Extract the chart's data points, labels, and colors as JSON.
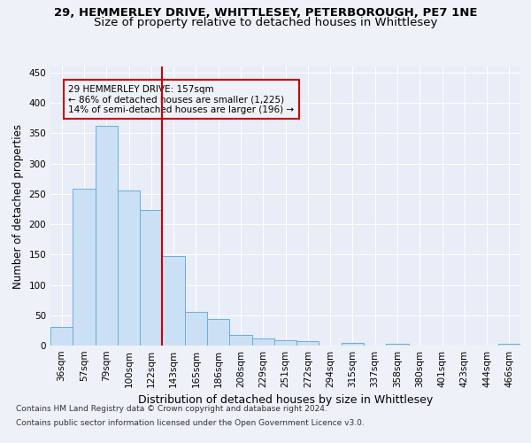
{
  "title_line1": "29, HEMMERLEY DRIVE, WHITTLESEY, PETERBOROUGH, PE7 1NE",
  "title_line2": "Size of property relative to detached houses in Whittlesey",
  "xlabel": "Distribution of detached houses by size in Whittlesey",
  "ylabel": "Number of detached properties",
  "categories": [
    "36sqm",
    "57sqm",
    "79sqm",
    "100sqm",
    "122sqm",
    "143sqm",
    "165sqm",
    "186sqm",
    "208sqm",
    "229sqm",
    "251sqm",
    "272sqm",
    "294sqm",
    "315sqm",
    "337sqm",
    "358sqm",
    "380sqm",
    "401sqm",
    "423sqm",
    "444sqm",
    "466sqm"
  ],
  "values": [
    30,
    258,
    362,
    256,
    224,
    148,
    55,
    44,
    17,
    11,
    9,
    7,
    0,
    5,
    0,
    3,
    0,
    0,
    0,
    0,
    3
  ],
  "bar_facecolor": "#cce0f5",
  "bar_edgecolor": "#6aaed6",
  "vline_color": "#cc0000",
  "annotation_line1": "29 HEMMERLEY DRIVE: 157sqm",
  "annotation_line2": "← 86% of detached houses are smaller (1,225)",
  "annotation_line3": "14% of semi-detached houses are larger (196) →",
  "annotation_box_color": "#cc0000",
  "ylim": [
    0,
    460
  ],
  "yticks": [
    0,
    50,
    100,
    150,
    200,
    250,
    300,
    350,
    400,
    450
  ],
  "footnote_line1": "Contains HM Land Registry data © Crown copyright and database right 2024.",
  "footnote_line2": "Contains public sector information licensed under the Open Government Licence v3.0.",
  "bg_color": "#eef2f8",
  "plot_bg_color": "#e8edf7",
  "grid_color": "#ffffff",
  "title_fontsize": 9.5,
  "subtitle_fontsize": 9.5,
  "tick_fontsize": 7.5,
  "ylabel_fontsize": 8.5,
  "xlabel_fontsize": 9,
  "footnote_fontsize": 6.5
}
